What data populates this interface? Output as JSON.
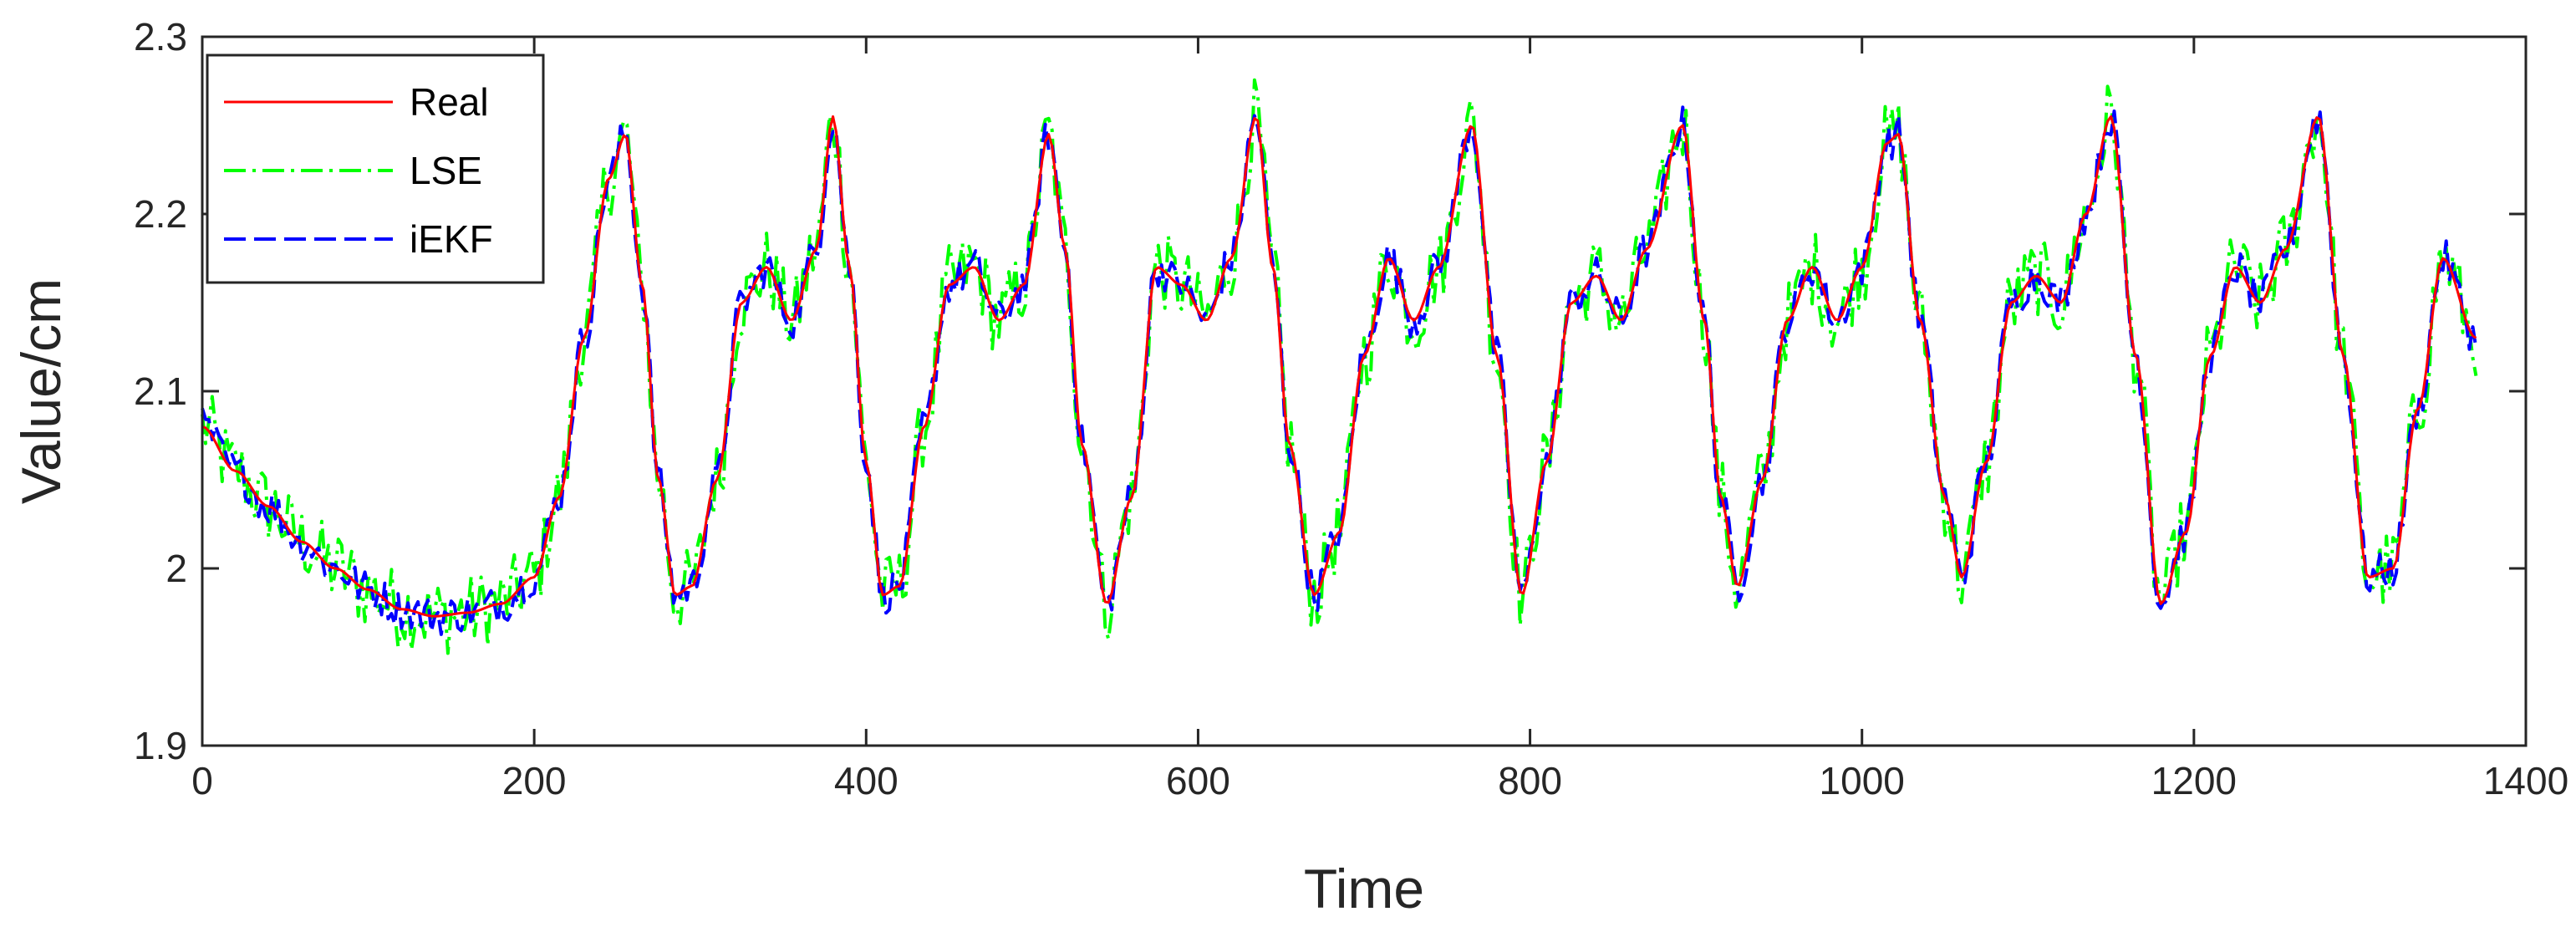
{
  "chart_data": {
    "type": "line",
    "xlabel": "Time",
    "ylabel": "Value/cm",
    "xlim": [
      0,
      1400
    ],
    "ylim": [
      1.9,
      2.3
    ],
    "xticks": [
      0,
      200,
      400,
      600,
      800,
      1000,
      1200,
      1400
    ],
    "yticks": [
      1.9,
      2.0,
      2.1,
      2.2,
      2.3
    ],
    "xtick_labels": [
      "0",
      "200",
      "400",
      "600",
      "800",
      "1000",
      "1200",
      "1400"
    ],
    "ytick_labels": [
      "1.9",
      "2",
      "2.1",
      "2.2",
      "2.3"
    ],
    "grid": false,
    "legend_position": "top-left",
    "series": [
      {
        "name": "Real",
        "color": "#ff0000",
        "style": "solid",
        "x": [
          0,
          20,
          40,
          60,
          80,
          100,
          120,
          140,
          160,
          180,
          200,
          215,
          230,
          245,
          255,
          265,
          275,
          285,
          295,
          310,
          325,
          340,
          355,
          370,
          380,
          390,
          400,
          410,
          420,
          435,
          450,
          465,
          480,
          495,
          510,
          520,
          530,
          545,
          560,
          575,
          590,
          605,
          620,
          635,
          645,
          655,
          670,
          685,
          700,
          715,
          730,
          745,
          765,
          780,
          795,
          810,
          825,
          840,
          855,
          870,
          892,
          905,
          915,
          925,
          940,
          955,
          970,
          985,
          1000,
          1015,
          1022,
          1035,
          1050,
          1060,
          1075,
          1090,
          1105,
          1120,
          1135,
          1150,
          1165,
          1180,
          1195,
          1210,
          1225,
          1240,
          1255,
          1275,
          1290,
          1305,
          1320,
          1335,
          1350,
          1370
        ],
        "y": [
          2.08,
          2.055,
          2.035,
          2.015,
          2.0,
          1.988,
          1.977,
          1.973,
          1.975,
          1.98,
          1.995,
          2.04,
          2.13,
          2.22,
          2.245,
          2.16,
          2.05,
          1.985,
          1.99,
          2.05,
          2.15,
          2.17,
          2.14,
          2.18,
          2.255,
          2.17,
          2.06,
          1.985,
          1.99,
          2.08,
          2.16,
          2.17,
          2.14,
          2.16,
          2.245,
          2.18,
          2.07,
          1.98,
          2.04,
          2.17,
          2.16,
          2.14,
          2.175,
          2.255,
          2.17,
          2.07,
          1.985,
          2.02,
          2.12,
          2.175,
          2.14,
          2.17,
          2.25,
          2.12,
          1.985,
          2.06,
          2.15,
          2.165,
          2.14,
          2.18,
          2.25,
          2.14,
          2.04,
          1.99,
          2.05,
          2.14,
          2.17,
          2.14,
          2.17,
          2.24,
          2.245,
          2.14,
          2.04,
          1.995,
          2.06,
          2.15,
          2.165,
          2.15,
          2.2,
          2.255,
          2.12,
          1.98,
          2.02,
          2.12,
          2.17,
          2.15,
          2.18,
          2.255,
          2.12,
          1.995,
          2.0,
          2.09,
          2.175,
          2.13
        ]
      },
      {
        "name": "LSE",
        "color": "#00ff00",
        "style": "dash-dot"
      },
      {
        "name": "iEKF",
        "color": "#0000ff",
        "style": "dashed"
      }
    ]
  }
}
